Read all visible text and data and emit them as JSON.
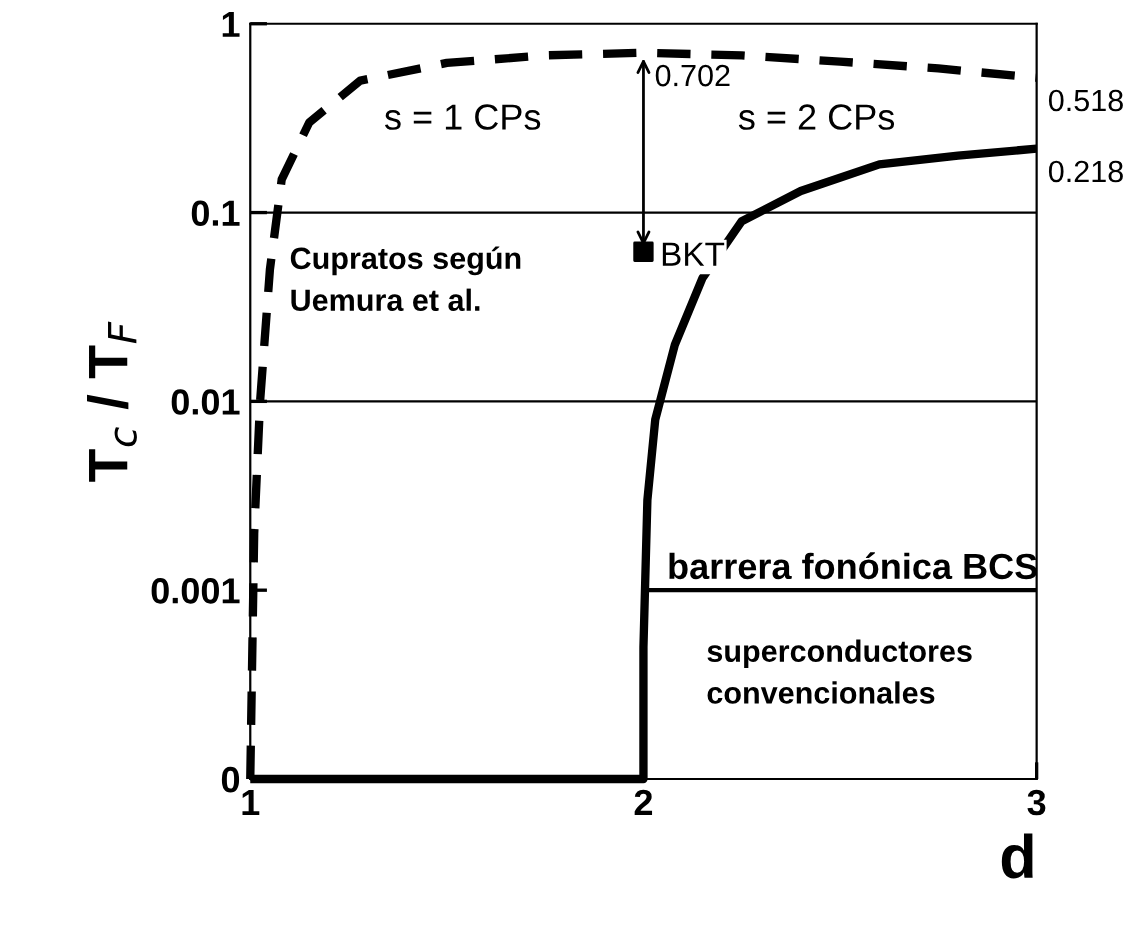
{
  "chart_data": {
    "type": "line",
    "xlabel": "d",
    "ylabel": "T$_{c}$ / T$_{F}$",
    "log": "y",
    "xlim": [
      1,
      3
    ],
    "xticks": [
      1,
      2,
      3
    ],
    "ylim": [
      0.0001,
      1
    ],
    "yticks": [
      {
        "value": 0.0001,
        "label": "0"
      },
      0.001,
      0.01,
      0.1,
      1
    ],
    "grid": false,
    "legend": false,
    "series": [
      {
        "name": "s = 1 CPs",
        "color": "#000000",
        "line_style": "dashed",
        "x": [
          1,
          1.01,
          1.025,
          1.05,
          1.08,
          1.15,
          1.28,
          1.5,
          1.75,
          2,
          2.25,
          2.5,
          2.75,
          3
        ],
        "values": [
          0.0001,
          0.002,
          0.01,
          0.05,
          0.15,
          0.3,
          0.5,
          0.62,
          0.68,
          0.702,
          0.68,
          0.63,
          0.58,
          0.518
        ],
        "value_labels": [
          null,
          null,
          null,
          null,
          null,
          null,
          null,
          null,
          null,
          "0.702",
          null,
          null,
          null,
          "0.518"
        ]
      },
      {
        "name": "s = 2 CPs",
        "color": "#000000",
        "line_style": "solid",
        "x": [
          1,
          2,
          2,
          2.01,
          2.03,
          2.08,
          2.15,
          2.25,
          2.4,
          2.6,
          2.8,
          3
        ],
        "values": [
          0.0001,
          0.0001,
          0.0005,
          0.003,
          0.008,
          0.02,
          0.045,
          0.09,
          0.13,
          0.18,
          0.2,
          0.218
        ],
        "value_labels": [
          null,
          null,
          null,
          null,
          null,
          null,
          null,
          null,
          null,
          null,
          null,
          "0.218"
        ]
      },
      {
        "type": "scatter",
        "marker": "square",
        "color": "#000000",
        "x": [
          2
        ],
        "values": [
          0.062
        ]
      },
      {
        "name": "barrera fonónica BCS",
        "color": "#000000",
        "line_style": "solid",
        "x": [
          2,
          3
        ],
        "values": [
          0.001,
          0.001
        ]
      }
    ],
    "ref_lines": [
      {
        "axis": "y",
        "value": 0.1,
        "color": "#000000"
      },
      {
        "axis": "y",
        "value": 0.01,
        "color": "#000000"
      }
    ],
    "annotations": [
      {
        "text": "BKT",
        "x": 2,
        "y": 0.062
      },
      "Cupratos según\nUemura et al.",
      "superconductores\nconvencionales"
    ]
  }
}
